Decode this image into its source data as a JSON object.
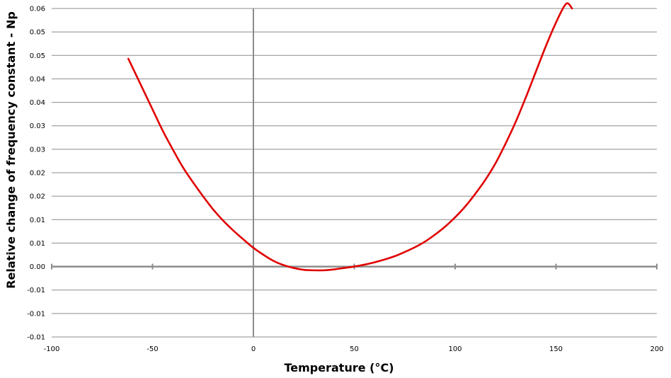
{
  "chart_data": {
    "type": "line",
    "title": "",
    "xlabel": "Temperature (°C)",
    "ylabel": "Relative change of frequency constant - Np",
    "xlim": [
      -100,
      200
    ],
    "ylim": [
      -0.015,
      0.055
    ],
    "x_ticks": [
      -100,
      -50,
      0,
      50,
      100,
      150,
      200
    ],
    "x_tick_labels": [
      "-100",
      "-50",
      "0",
      "50",
      "100",
      "150",
      "200"
    ],
    "y_ticks": [
      -0.015,
      -0.01,
      -0.005,
      0,
      0.005,
      0.01,
      0.015,
      0.02,
      0.025,
      0.03,
      0.035,
      0.04,
      0.045,
      0.05,
      0.055
    ],
    "y_tick_labels": [
      "-0.01",
      "-0.01",
      "-0.01",
      "0.00",
      "0.01",
      "0.01",
      "0.02",
      "0.02",
      "0.03",
      "0.03",
      "0.04",
      "0.04",
      "0.05",
      "0.05",
      "0.06"
    ],
    "grid": "horizontal",
    "legend": "none",
    "series": [
      {
        "color": "#e00000",
        "x": [
          -62,
          -55,
          -50,
          -45,
          -40,
          -35,
          -30,
          -25,
          -20,
          -15,
          -10,
          -5,
          0,
          5,
          10,
          15,
          20,
          25,
          30,
          35,
          40,
          45,
          50,
          55,
          60,
          65,
          70,
          75,
          80,
          85,
          90,
          95,
          100,
          105,
          110,
          115,
          120,
          125,
          130,
          135,
          140,
          145,
          150,
          155,
          158
        ],
        "y": [
          0.0443,
          0.038,
          0.0335,
          0.029,
          0.025,
          0.0212,
          0.018,
          0.015,
          0.0122,
          0.0098,
          0.0077,
          0.0058,
          0.004,
          0.0025,
          0.0012,
          0.0003,
          -0.0003,
          -0.0007,
          -0.0008,
          -0.0008,
          -0.0006,
          -0.0003,
          0.0,
          0.0004,
          0.0009,
          0.0015,
          0.0022,
          0.0031,
          0.0041,
          0.0053,
          0.0068,
          0.0085,
          0.0105,
          0.0128,
          0.0155,
          0.0185,
          0.022,
          0.0262,
          0.0308,
          0.036,
          0.0415,
          0.047,
          0.052,
          0.056,
          0.055
        ]
      }
    ]
  },
  "colors": {
    "curve": "#e00000",
    "grid": "#8c8c8c",
    "axis": "#8c8c8c"
  }
}
